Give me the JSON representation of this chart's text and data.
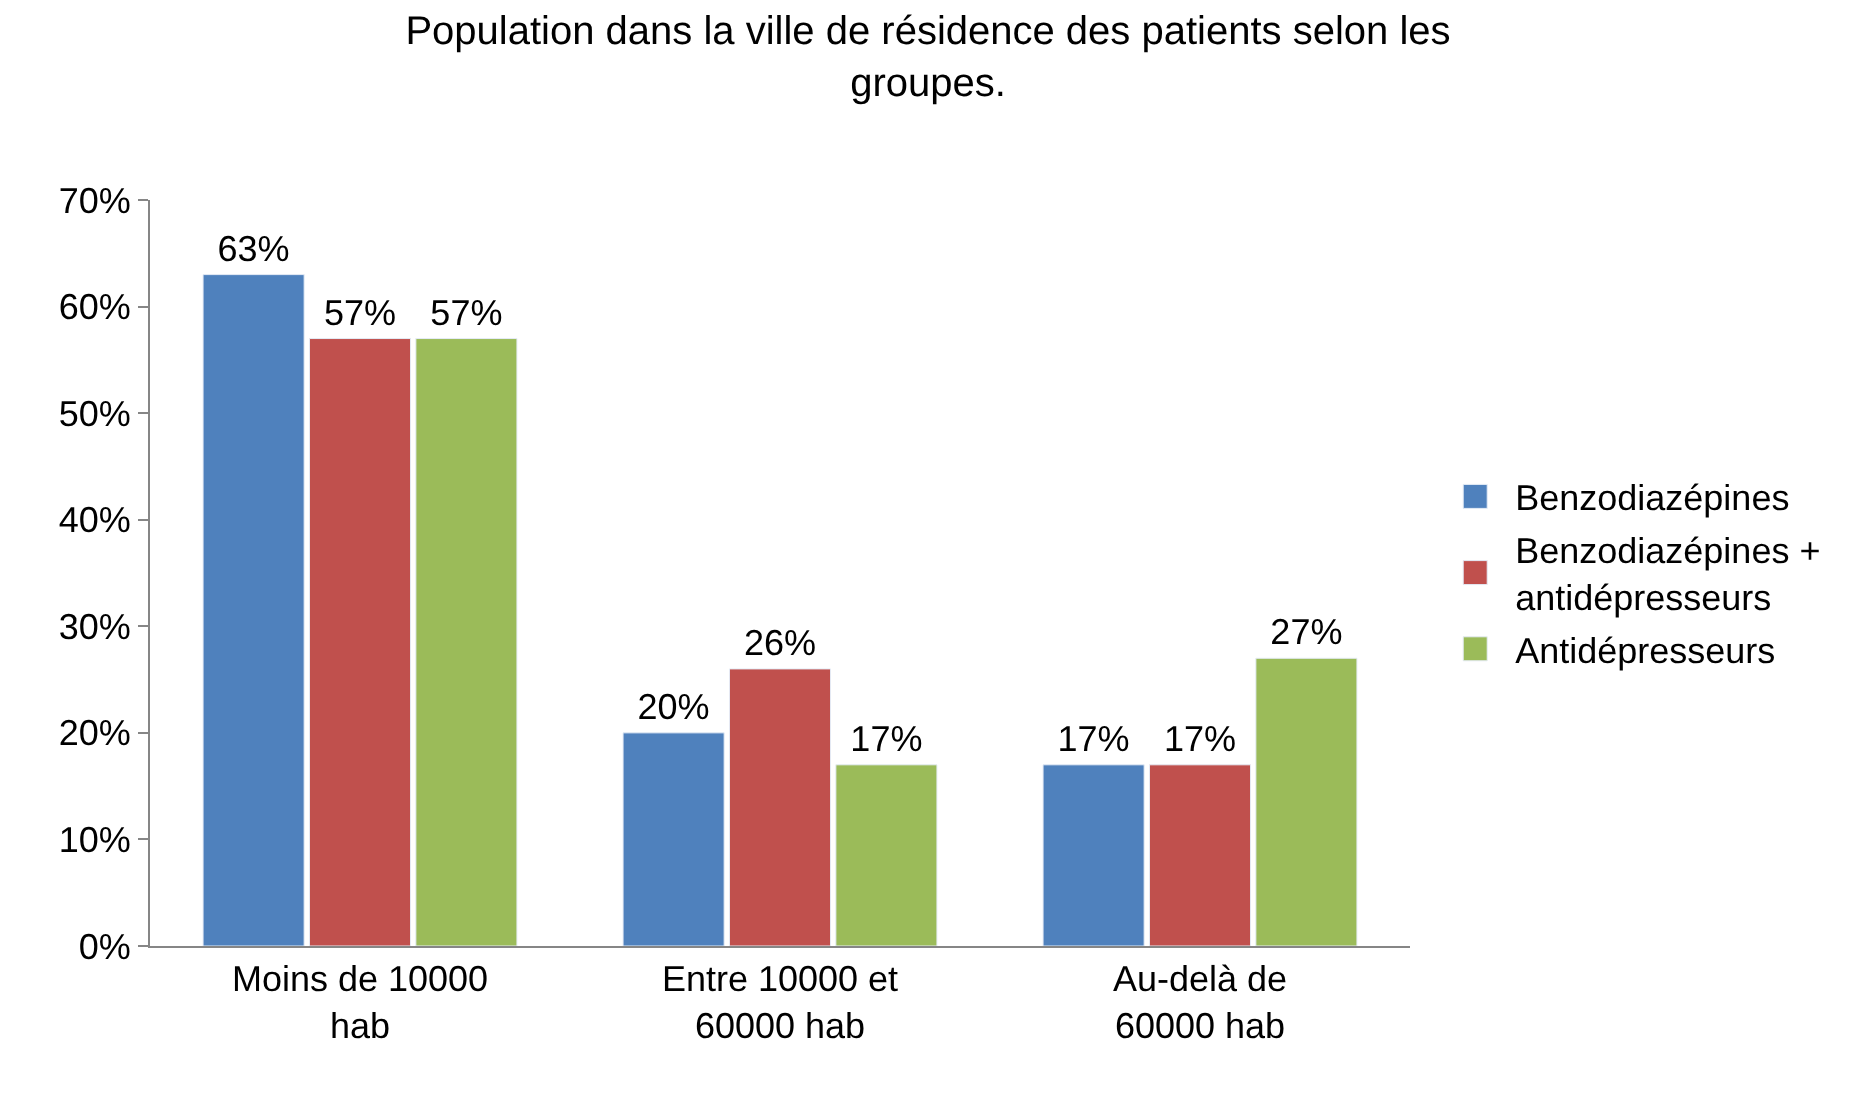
{
  "chart_data": {
    "type": "bar",
    "title": "Population dans la ville de résidence des patients selon les groupes.",
    "categories": [
      "Moins de 10000 hab",
      "Entre 10000 et 60000 hab",
      "Au-delà de 60000 hab"
    ],
    "series": [
      {
        "name": "Benzodiazépines",
        "color": "#4f81bd",
        "values": [
          63,
          20,
          17
        ],
        "value_labels": [
          "63%",
          "20%",
          "17%"
        ]
      },
      {
        "name": "Benzodiazépines + antidépresseurs",
        "color": "#c0504d",
        "values": [
          57,
          26,
          17
        ],
        "value_labels": [
          "57%",
          "26%",
          "17%"
        ]
      },
      {
        "name": "Antidépresseurs",
        "color": "#9bbb59",
        "values": [
          57,
          17,
          27
        ],
        "value_labels": [
          "57%",
          "17%",
          "27%"
        ]
      }
    ],
    "ylim": [
      0,
      70
    ],
    "yticks": [
      {
        "value": 0,
        "label": "0%"
      },
      {
        "value": 10,
        "label": "10%"
      },
      {
        "value": 20,
        "label": "20%"
      },
      {
        "value": 30,
        "label": "30%"
      },
      {
        "value": 40,
        "label": "40%"
      },
      {
        "value": 50,
        "label": "50%"
      },
      {
        "value": 60,
        "label": "60%"
      },
      {
        "value": 70,
        "label": "70%"
      }
    ],
    "legend": "right"
  }
}
